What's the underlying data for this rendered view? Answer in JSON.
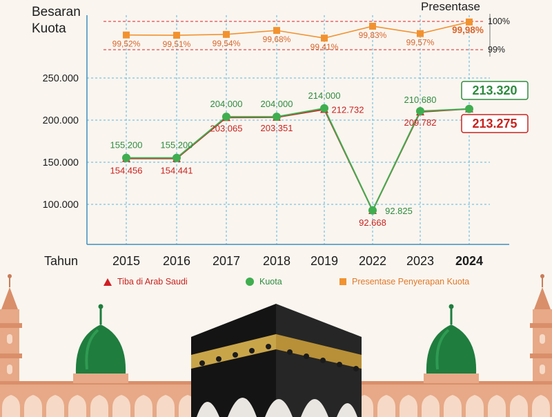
{
  "title_left": "Besaran\nKuota",
  "title_right": "Presentase",
  "x_axis_label": "Tahun",
  "chart_data": {
    "type": "line",
    "categories": [
      "2015",
      "2016",
      "2017",
      "2018",
      "2019",
      "2022",
      "2023",
      "2024"
    ],
    "bold_category": "2024",
    "series": [
      {
        "name": "Tiba di Arab Saudi",
        "marker": "triangle",
        "color": "#d11e23",
        "values": [
          154456,
          154441,
          203065,
          203351,
          212732,
          92668,
          209782,
          213275
        ],
        "labels": [
          "154.456",
          "154.441",
          "203.065",
          "203.351",
          "212.732",
          "92.668",
          "209.782",
          "213.275"
        ]
      },
      {
        "name": "Kuota",
        "marker": "circle",
        "color": "#3fae4f",
        "values": [
          155200,
          155200,
          204000,
          204000,
          214000,
          92825,
          210680,
          213320
        ],
        "labels": [
          "155.200",
          "155.200",
          "204.000",
          "204.000",
          "214.000",
          "92.825",
          "210.680",
          "213.320"
        ]
      },
      {
        "name": "Presentase Penyerapan Kuota",
        "marker": "square",
        "color": "#f2922f",
        "values": [
          99.52,
          99.51,
          99.54,
          99.68,
          99.41,
          99.83,
          99.57,
          99.98
        ],
        "labels": [
          "99,52%",
          "99,51%",
          "99,54%",
          "99,68%",
          "99,41%",
          "99,83%",
          "99,57%",
          "99,98%"
        ]
      }
    ],
    "y_ticks": [
      "250.000",
      "200.000",
      "150.000",
      "100.000"
    ],
    "y_tick_values": [
      250000,
      200000,
      150000,
      100000
    ],
    "ylim": [
      70000,
      250000
    ],
    "pct_ticks": [
      "100%",
      "99%"
    ],
    "pct_tick_values": [
      100,
      99
    ],
    "pct_range": [
      99,
      100
    ],
    "grid": true,
    "legend_position": "bottom"
  },
  "colors": {
    "red": "#d11e23",
    "green": "#3fae4f",
    "orange": "#f2922f",
    "grid": "#56b8e2",
    "dome": "#1f7d3e",
    "kaaba": "#1b1b1b",
    "gold": "#c9a54a",
    "terracotta": "#e7a987"
  }
}
